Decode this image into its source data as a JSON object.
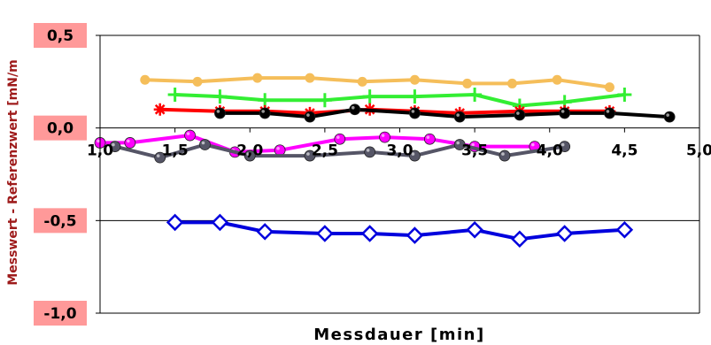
{
  "chart_data": {
    "type": "line",
    "title": "",
    "xlabel": "Messdauer [min]",
    "ylabel": "Messwert - Referenzwert  [mN/m",
    "xlim": [
      1.0,
      5.0
    ],
    "ylim": [
      -1.0,
      0.5
    ],
    "x_ticks": [
      1.0,
      1.5,
      2.0,
      2.5,
      3.0,
      3.5,
      4.0,
      4.5,
      5.0
    ],
    "x_tick_labels": [
      "1,0",
      "1,5",
      "2,0",
      "2,5",
      "3,0",
      "3,5",
      "4,0",
      "4,5",
      "5,0"
    ],
    "y_ticks": [
      0.5,
      0.0,
      -0.5,
      -1.0
    ],
    "y_tick_labels": [
      "0,5",
      "0,0",
      "-0,5",
      "-1,0"
    ],
    "grid": "horizontal",
    "colors": {
      "ytick_label_bg": "#ff9999",
      "ylabel_text": "#9e1b1b",
      "axis": "#000000"
    },
    "series": [
      {
        "color": "#f5be5a",
        "marker": "circle",
        "x": [
          1.3,
          1.65,
          2.05,
          2.4,
          2.75,
          3.1,
          3.45,
          3.75,
          4.05,
          4.4
        ],
        "y": [
          0.26,
          0.25,
          0.27,
          0.27,
          0.25,
          0.26,
          0.24,
          0.24,
          0.26,
          0.22
        ]
      },
      {
        "color": "#33ee33",
        "marker": "plus",
        "x": [
          1.5,
          1.8,
          2.1,
          2.5,
          2.8,
          3.1,
          3.5,
          3.8,
          4.1,
          4.5
        ],
        "y": [
          0.18,
          0.17,
          0.15,
          0.15,
          0.17,
          0.17,
          0.18,
          0.12,
          0.14,
          0.18
        ]
      },
      {
        "color": "#ff0000",
        "marker": "asterisk",
        "x": [
          1.4,
          1.8,
          2.1,
          2.4,
          2.8,
          3.1,
          3.4,
          3.8,
          4.1,
          4.4
        ],
        "y": [
          0.1,
          0.09,
          0.09,
          0.08,
          0.1,
          0.09,
          0.08,
          0.09,
          0.09,
          0.09
        ]
      },
      {
        "color": "#000000",
        "marker": "sphere",
        "x": [
          1.8,
          2.1,
          2.4,
          2.7,
          3.1,
          3.4,
          3.8,
          4.1,
          4.4,
          4.8
        ],
        "y": [
          0.08,
          0.08,
          0.06,
          0.1,
          0.08,
          0.06,
          0.07,
          0.08,
          0.08,
          0.06
        ]
      },
      {
        "color": "#ff00ff",
        "marker": "sphere",
        "x": [
          1.0,
          1.2,
          1.6,
          1.9,
          2.2,
          2.6,
          2.9,
          3.2,
          3.5,
          3.9
        ],
        "y": [
          -0.08,
          -0.08,
          -0.04,
          -0.13,
          -0.12,
          -0.06,
          -0.05,
          -0.06,
          -0.1,
          -0.1
        ]
      },
      {
        "color": "#555566",
        "marker": "sphere",
        "x": [
          1.1,
          1.4,
          1.7,
          2.0,
          2.4,
          2.8,
          3.1,
          3.4,
          3.7,
          4.1
        ],
        "y": [
          -0.1,
          -0.16,
          -0.09,
          -0.15,
          -0.15,
          -0.13,
          -0.15,
          -0.09,
          -0.15,
          -0.1
        ]
      },
      {
        "color": "#0000dd",
        "marker": "diamond",
        "x": [
          1.5,
          1.8,
          2.1,
          2.5,
          2.8,
          3.1,
          3.5,
          3.8,
          4.1,
          4.5
        ],
        "y": [
          -0.51,
          -0.51,
          -0.56,
          -0.57,
          -0.57,
          -0.58,
          -0.55,
          -0.6,
          -0.57,
          -0.55
        ]
      }
    ]
  }
}
